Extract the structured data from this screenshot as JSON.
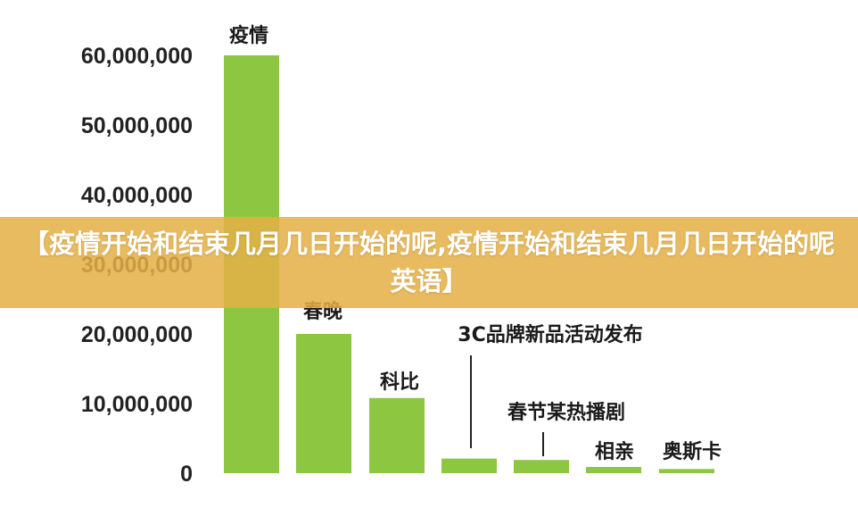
{
  "chart_data": {
    "type": "bar",
    "categories": [
      "疫情",
      "春晚",
      "科比",
      "3C品牌新品活动发布",
      "春节某热播剧",
      "相亲",
      "奥斯卡"
    ],
    "values": [
      60000000,
      20000000,
      10800000,
      2100000,
      1900000,
      900000,
      600000
    ],
    "yticks": [
      "0",
      "10,000,000",
      "20,000,000",
      "30,000,000",
      "40,000,000",
      "50,000,000",
      "60,000,000"
    ],
    "ylim": [
      0,
      60000000
    ],
    "title": "",
    "xlabel": "",
    "ylabel": "",
    "grid": false,
    "bar_color": "#8dc641",
    "leader_line_color": "#222222"
  },
  "banner": {
    "text": "【疫情开始和结束几月几日开始的呢,疫情开始和结束几月几日开始的呢英语】",
    "color": "#e4b046"
  }
}
